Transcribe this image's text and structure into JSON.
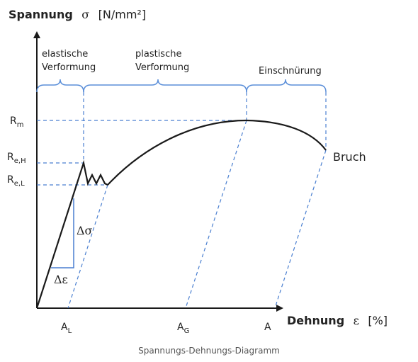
{
  "colors": {
    "curve": "#1a1a1a",
    "bracket": "#5b8fd9",
    "guide": "#4a7fd0",
    "triangle": "#4a7fd0",
    "text": "#222222",
    "caption": "#555555"
  },
  "y_axis": {
    "label": "Spannung",
    "symbol": "σ",
    "unit": "[N/mm²]"
  },
  "x_axis": {
    "label": "Dehnung",
    "symbol": "ε",
    "unit": "[%]"
  },
  "y_levels": [
    {
      "main": "R",
      "sub": "m"
    },
    {
      "main": "R",
      "sub": "e,H"
    },
    {
      "main": "R",
      "sub": "e,L"
    }
  ],
  "x_marks": [
    {
      "main": "A",
      "sub": "L"
    },
    {
      "main": "A",
      "sub": "G"
    },
    {
      "main": "A",
      "sub": ""
    }
  ],
  "regions": {
    "elastic_line1": "elastische",
    "elastic_line2": "Verformung",
    "plastic_line1": "plastische",
    "plastic_line2": "Verformung",
    "necking": "Einschnürung"
  },
  "annotations": {
    "fracture": "Bruch",
    "delta_sigma": "Δσ",
    "delta_epsilon": "Δε"
  },
  "caption": "Spannungs-Dehnungs-Diagramm"
}
